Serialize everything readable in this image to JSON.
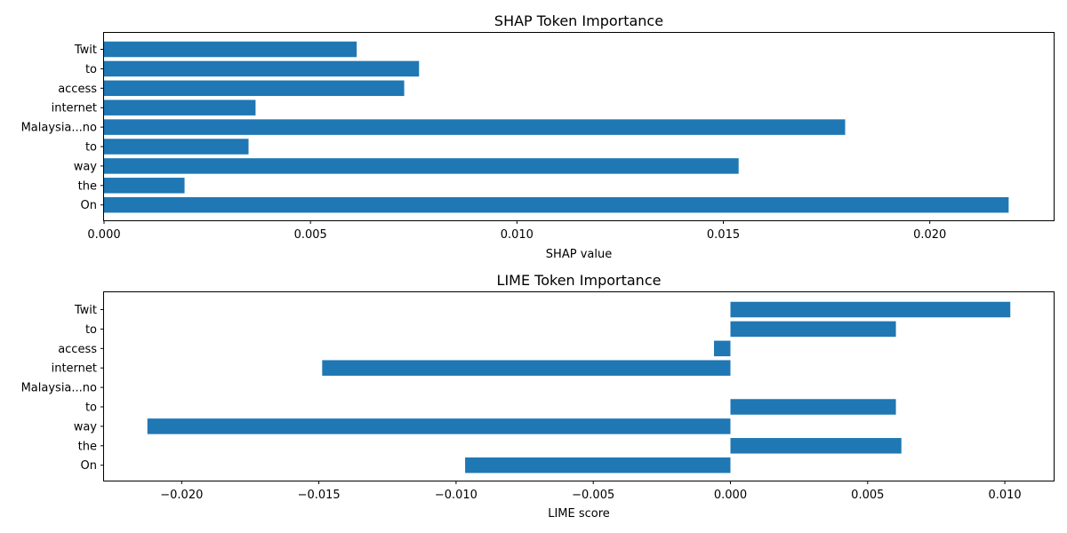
{
  "bar_color": "#1f77b4",
  "chart_data": [
    {
      "type": "bar",
      "orientation": "horizontal",
      "title": "SHAP Token Importance",
      "xlabel": "SHAP value",
      "ylabel": "",
      "categories": [
        "Twit",
        "to",
        "access",
        "internet",
        "Malaysia...no",
        "to",
        "way",
        "the",
        "On"
      ],
      "values": [
        0.00612,
        0.00763,
        0.00727,
        0.00367,
        0.01795,
        0.0035,
        0.01537,
        0.00195,
        0.02191
      ],
      "xlim": [
        0.0,
        0.023
      ],
      "xticks": [
        0.0,
        0.005,
        0.01,
        0.015,
        0.02
      ],
      "xtick_labels": [
        "0.000",
        "0.005",
        "0.010",
        "0.015",
        "0.020"
      ],
      "grid": false
    },
    {
      "type": "bar",
      "orientation": "horizontal",
      "title": "LIME Token Importance",
      "xlabel": "LIME score",
      "ylabel": "",
      "categories": [
        "Twit",
        "to",
        "access",
        "internet",
        "Malaysia...no",
        "to",
        "way",
        "the",
        "On"
      ],
      "values": [
        0.0102,
        0.00603,
        -0.0006,
        -0.01488,
        0.0,
        0.00603,
        -0.02125,
        0.00623,
        -0.00967
      ],
      "xlim": [
        -0.02283,
        0.01178
      ],
      "xticks": [
        -0.02,
        -0.015,
        -0.01,
        -0.005,
        0.0,
        0.005,
        0.01
      ],
      "xtick_labels": [
        "−0.020",
        "−0.015",
        "−0.010",
        "−0.005",
        "0.000",
        "0.005",
        "0.010"
      ],
      "grid": false
    }
  ]
}
